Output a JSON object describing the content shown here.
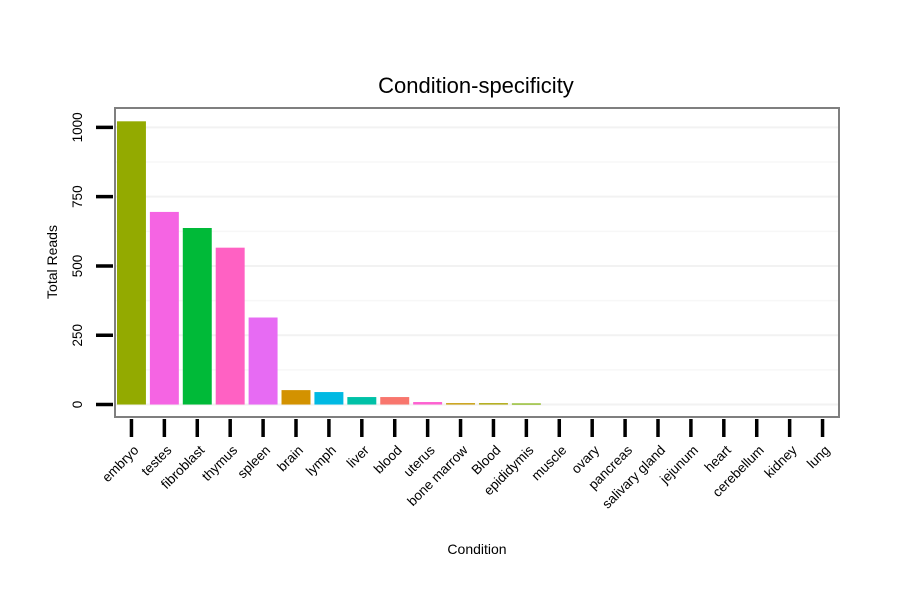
{
  "chart_data": {
    "type": "bar",
    "title": "Condition-specificity",
    "xlabel": "Condition",
    "ylabel": "Total Reads",
    "ylim": [
      -45,
      1070
    ],
    "yticks": [
      0,
      250,
      500,
      750,
      1000
    ],
    "grid": true,
    "categories": [
      "embryo",
      "testes",
      "fibroblast",
      "thymus",
      "spleen",
      "brain",
      "lymph",
      "liver",
      "blood",
      "uterus",
      "bone marrow",
      "Blood",
      "epididymis",
      "muscle",
      "ovary",
      "pancreas",
      "salivary gland",
      "jejunum",
      "heart",
      "cerebellum",
      "kidney",
      "lung"
    ],
    "values": [
      1022,
      695,
      637,
      566,
      314,
      52,
      45,
      27,
      27,
      9,
      5,
      5,
      4,
      0,
      0,
      0,
      0,
      0,
      0,
      0,
      0,
      0
    ],
    "colors": [
      "#93aa00",
      "#f564e3",
      "#00ba38",
      "#ff61c3",
      "#e76bf3",
      "#d39200",
      "#00b9e3",
      "#00c1a7",
      "#f8766d",
      "#fd61d1",
      "#c59900",
      "#aba300",
      "#7cae00",
      "#00bf7d",
      "#00bfc4",
      "#00adfa",
      "#619cff",
      "#8b93ff",
      "#b983ff",
      "#db72fb",
      "#ff62bc",
      "#ff6c91"
    ]
  }
}
